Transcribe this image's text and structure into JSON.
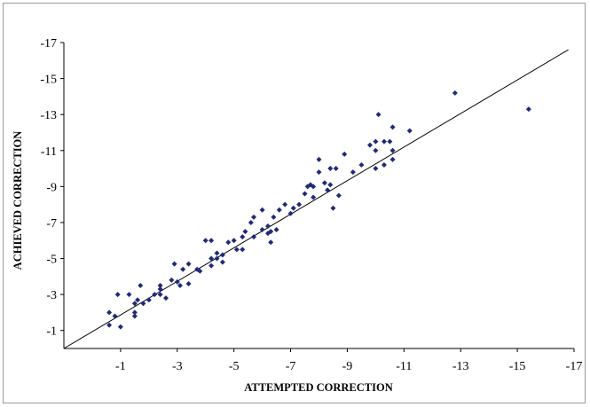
{
  "chart_data": {
    "type": "scatter",
    "title": "",
    "xlabel": "ATTEMPTED CORRECTION",
    "ylabel": "ACHIEVED CORRECTION",
    "xlim": [
      1,
      -17
    ],
    "ylim": [
      0,
      -17
    ],
    "x_ticks": [
      -1,
      -3,
      -5,
      -7,
      -9,
      -11,
      -13,
      -15,
      -17
    ],
    "x_tick_labels": [
      "-1",
      "-3",
      "-5",
      "-7",
      "-9",
      "-11",
      "-13",
      "-15",
      "-17"
    ],
    "y_ticks": [
      -1,
      -3,
      -5,
      -7,
      -9,
      -11,
      -13,
      -15,
      -17
    ],
    "y_tick_labels": [
      "-1",
      "-3",
      "-5",
      "-7",
      "-9",
      "-11",
      "-13",
      "-15",
      "-17"
    ],
    "grid": false,
    "legend": "none",
    "marker_color": "#1f2a7a",
    "line_color": "#000000",
    "reference_line": {
      "label": "",
      "points": [
        [
          1,
          0
        ],
        [
          -16.8,
          -16.6
        ]
      ]
    },
    "points": [
      [
        -0.6,
        -1.3
      ],
      [
        -0.6,
        -2.0
      ],
      [
        -0.8,
        -1.8
      ],
      [
        -0.9,
        -3.0
      ],
      [
        -1.0,
        -1.2
      ],
      [
        -1.3,
        -3.0
      ],
      [
        -1.5,
        -2.5
      ],
      [
        -1.5,
        -2.0
      ],
      [
        -1.6,
        -2.7
      ],
      [
        -1.5,
        -1.8
      ],
      [
        -1.7,
        -3.5
      ],
      [
        -1.8,
        -2.5
      ],
      [
        -2.0,
        -2.7
      ],
      [
        -2.2,
        -3.0
      ],
      [
        -2.4,
        -3.3
      ],
      [
        -2.4,
        -3.5
      ],
      [
        -2.4,
        -3.0
      ],
      [
        -2.6,
        -2.8
      ],
      [
        -2.8,
        -3.8
      ],
      [
        -2.9,
        -4.7
      ],
      [
        -3.0,
        -3.7
      ],
      [
        -3.1,
        -3.5
      ],
      [
        -3.2,
        -4.4
      ],
      [
        -3.4,
        -3.6
      ],
      [
        -3.4,
        -4.7
      ],
      [
        -3.7,
        -4.4
      ],
      [
        -3.8,
        -4.3
      ],
      [
        -4.0,
        -6.0
      ],
      [
        -4.2,
        -6.0
      ],
      [
        -4.2,
        -5.0
      ],
      [
        -4.2,
        -4.6
      ],
      [
        -4.4,
        -5.3
      ],
      [
        -4.4,
        -5.0
      ],
      [
        -4.6,
        -4.8
      ],
      [
        -4.6,
        -5.2
      ],
      [
        -4.8,
        -5.9
      ],
      [
        -5.0,
        -6.0
      ],
      [
        -5.1,
        -5.5
      ],
      [
        -5.3,
        -5.5
      ],
      [
        -5.3,
        -6.2
      ],
      [
        -5.4,
        -6.5
      ],
      [
        -5.6,
        -7.0
      ],
      [
        -5.7,
        -6.2
      ],
      [
        -5.7,
        -7.3
      ],
      [
        -6.0,
        -6.6
      ],
      [
        -6.0,
        -7.7
      ],
      [
        -6.2,
        -6.4
      ],
      [
        -6.2,
        -6.8
      ],
      [
        -6.3,
        -6.5
      ],
      [
        -6.3,
        -5.9
      ],
      [
        -6.4,
        -7.3
      ],
      [
        -6.5,
        -6.6
      ],
      [
        -6.6,
        -7.7
      ],
      [
        -6.8,
        -8.0
      ],
      [
        -7.0,
        -7.5
      ],
      [
        -7.1,
        -7.8
      ],
      [
        -7.3,
        -8.0
      ],
      [
        -7.5,
        -8.6
      ],
      [
        -7.6,
        -9.0
      ],
      [
        -7.7,
        -9.1
      ],
      [
        -7.8,
        -8.4
      ],
      [
        -7.8,
        -9.0
      ],
      [
        -8.0,
        -10.5
      ],
      [
        -8.0,
        -9.8
      ],
      [
        -8.2,
        -9.2
      ],
      [
        -8.3,
        -8.8
      ],
      [
        -8.4,
        -10.0
      ],
      [
        -8.4,
        -9.1
      ],
      [
        -8.5,
        -7.8
      ],
      [
        -8.6,
        -10.0
      ],
      [
        -8.7,
        -8.5
      ],
      [
        -8.9,
        -10.8
      ],
      [
        -9.2,
        -9.8
      ],
      [
        -9.5,
        -10.2
      ],
      [
        -9.8,
        -11.3
      ],
      [
        -10.0,
        -11.0
      ],
      [
        -10.0,
        -11.5
      ],
      [
        -10.0,
        -10.0
      ],
      [
        -10.1,
        -13.0
      ],
      [
        -10.3,
        -11.5
      ],
      [
        -10.3,
        -10.2
      ],
      [
        -10.5,
        -11.5
      ],
      [
        -10.6,
        -12.3
      ],
      [
        -10.6,
        -11.0
      ],
      [
        -10.6,
        -10.5
      ],
      [
        -11.2,
        -12.1
      ],
      [
        -12.8,
        -14.2
      ],
      [
        -15.4,
        -13.3
      ]
    ]
  }
}
